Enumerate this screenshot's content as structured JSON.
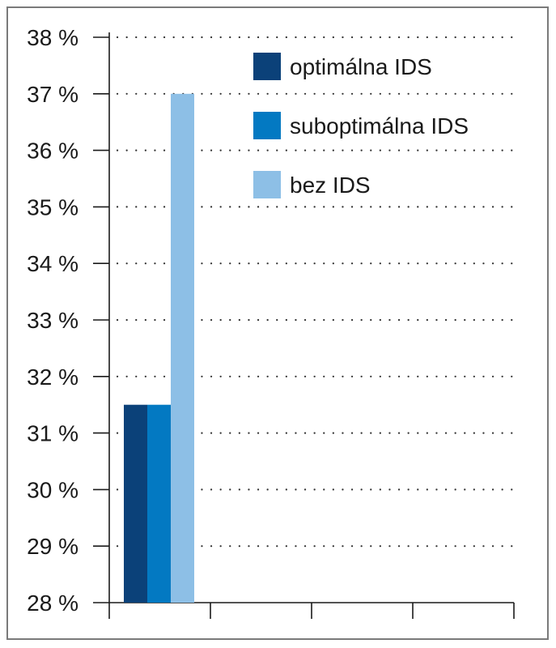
{
  "chart_data": {
    "type": "bar",
    "title": "",
    "xlabel": "",
    "ylabel": "",
    "ylim": [
      28,
      38
    ],
    "yticks": [
      28,
      29,
      30,
      31,
      32,
      33,
      34,
      35,
      36,
      37,
      38
    ],
    "ytick_suffix": " %",
    "grid": true,
    "legend_position": "top-right",
    "categories": [
      ""
    ],
    "series": [
      {
        "name": "optimálna IDS",
        "values": [
          31.5
        ],
        "color": "#0b4179"
      },
      {
        "name": "suboptimálna IDS",
        "values": [
          31.5
        ],
        "color": "#0379c2"
      },
      {
        "name": "bez IDS",
        "values": [
          37
        ],
        "color": "#8dbfe6"
      }
    ]
  }
}
